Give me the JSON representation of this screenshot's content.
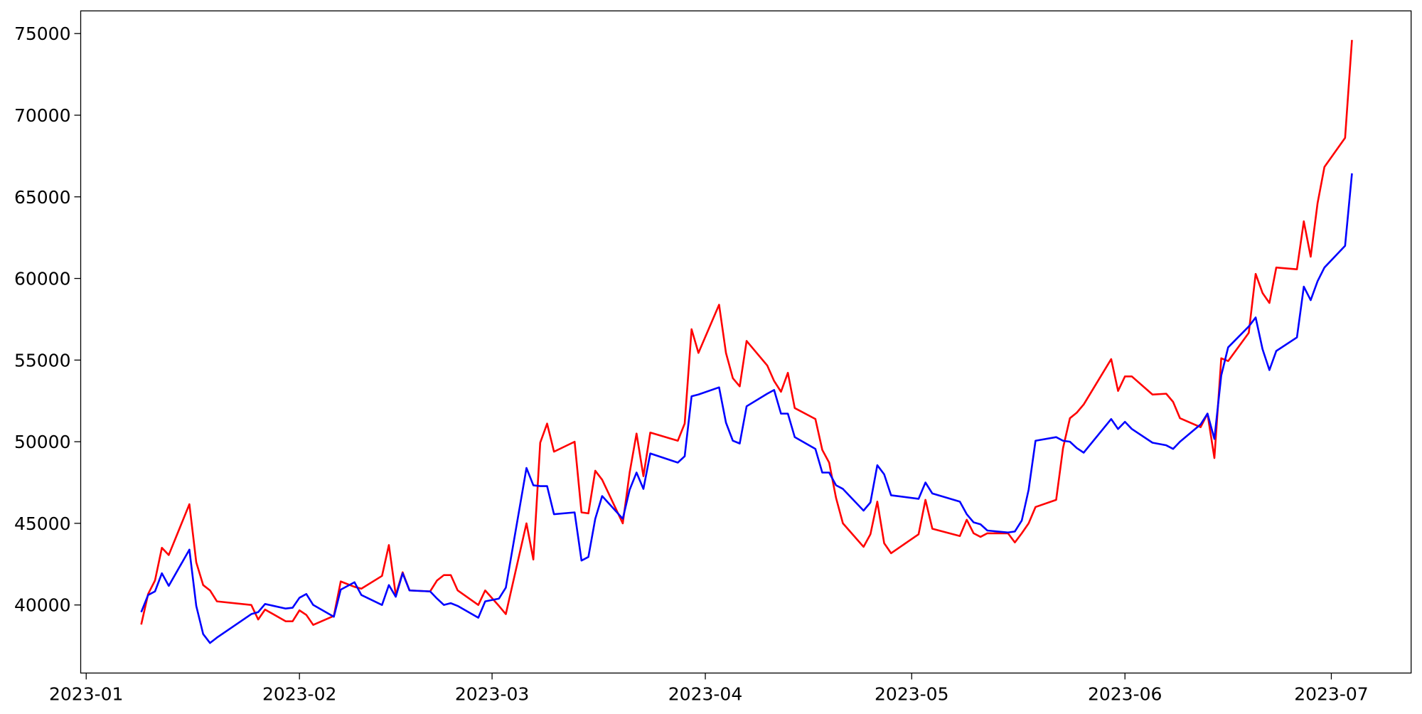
{
  "chart_data": {
    "type": "line",
    "x": [
      8,
      9,
      10,
      11,
      12,
      15,
      16,
      17,
      18,
      19,
      24,
      25,
      26,
      29,
      30,
      31,
      32,
      33,
      36,
      37,
      39,
      40,
      43,
      44,
      45,
      46,
      47,
      50,
      51,
      52,
      53,
      54,
      57,
      58,
      60,
      61,
      64,
      65,
      66,
      67,
      68,
      71,
      72,
      73,
      74,
      75,
      78,
      79,
      80,
      81,
      82,
      86,
      87,
      88,
      89,
      92,
      93,
      94,
      95,
      96,
      99,
      100,
      101,
      102,
      103,
      106,
      107,
      108,
      109,
      110,
      113,
      114,
      115,
      116,
      117,
      121,
      122,
      123,
      127,
      128,
      129,
      130,
      131,
      134,
      135,
      136,
      137,
      138,
      141,
      142,
      143,
      144,
      145,
      149,
      150,
      151,
      152,
      155,
      157,
      158,
      159,
      162,
      163,
      164,
      165,
      166,
      169,
      170,
      171,
      172,
      173,
      176,
      177,
      178,
      179,
      180,
      183,
      184
    ],
    "series": [
      {
        "color": "#ff0000",
        "values": [
          38800,
          40670,
          41500,
          43500,
          43060,
          46170,
          42610,
          41220,
          40890,
          40220,
          40000,
          39110,
          39720,
          39000,
          39000,
          39670,
          39390,
          38780,
          39330,
          41440,
          41110,
          41000,
          41780,
          43670,
          40610,
          42000,
          40890,
          40830,
          41500,
          41830,
          41830,
          40890,
          40000,
          40890,
          39940,
          39440,
          45000,
          42780,
          49940,
          51110,
          49390,
          50000,
          45670,
          45610,
          48220,
          47670,
          45000,
          48110,
          50500,
          47890,
          50560,
          50060,
          51110,
          56890,
          55440,
          58390,
          55440,
          53890,
          53390,
          56170,
          54670,
          53720,
          53060,
          54220,
          52060,
          51390,
          49500,
          48720,
          46560,
          45000,
          43560,
          44330,
          46330,
          43780,
          43170,
          44330,
          46440,
          44670,
          44220,
          45220,
          44390,
          44170,
          44390,
          44390,
          43830,
          44390,
          45000,
          46000,
          46440,
          49610,
          51440,
          51780,
          52280,
          55060,
          53110,
          54000,
          54000,
          52890,
          52940,
          52440,
          51440,
          50890,
          51720,
          49000,
          55110,
          54940,
          56670,
          60280,
          59110,
          58500,
          60670,
          60560,
          63500,
          61330,
          64610,
          66830,
          68610,
          74610
        ]
      },
      {
        "color": "#0000ff",
        "values": [
          39560,
          40610,
          40830,
          41940,
          41170,
          43390,
          39940,
          38220,
          37670,
          38000,
          39440,
          39560,
          40060,
          39780,
          39830,
          40440,
          40670,
          40000,
          39280,
          40940,
          41390,
          40610,
          40000,
          41220,
          40500,
          41940,
          40890,
          40830,
          40390,
          40000,
          40110,
          39940,
          39220,
          40220,
          40390,
          41060,
          48390,
          47330,
          47280,
          47280,
          45560,
          45670,
          42720,
          42940,
          45280,
          46670,
          45280,
          47060,
          48110,
          47110,
          49280,
          48720,
          49110,
          52780,
          52890,
          53330,
          51170,
          50060,
          49890,
          52170,
          52940,
          53170,
          51720,
          51720,
          50280,
          49560,
          48110,
          48110,
          47330,
          47110,
          45780,
          46280,
          48560,
          48000,
          46720,
          46500,
          47500,
          46830,
          46330,
          45560,
          45060,
          44940,
          44560,
          44440,
          44500,
          45170,
          47060,
          50060,
          50280,
          50060,
          50000,
          49610,
          49330,
          51390,
          50780,
          51220,
          50780,
          49940,
          49780,
          49560,
          50000,
          51060,
          51720,
          50170,
          54060,
          55780,
          57060,
          57610,
          55670,
          54390,
          55560,
          56390,
          59500,
          58670,
          59830,
          60670,
          62000,
          66440
        ]
      }
    ],
    "xlim": [
      -0.8,
      192.6
    ],
    "xticks": [
      {
        "value": 0,
        "label": "2023-01"
      },
      {
        "value": 31,
        "label": "2023-02"
      },
      {
        "value": 59,
        "label": "2023-03"
      },
      {
        "value": 90,
        "label": "2023-04"
      },
      {
        "value": 120,
        "label": "2023-05"
      },
      {
        "value": 151,
        "label": "2023-06"
      },
      {
        "value": 181,
        "label": "2023-07"
      }
    ],
    "ylim": [
      35830,
      76390
    ],
    "yticks": [
      40000,
      45000,
      50000,
      55000,
      60000,
      65000,
      70000,
      75000
    ]
  }
}
